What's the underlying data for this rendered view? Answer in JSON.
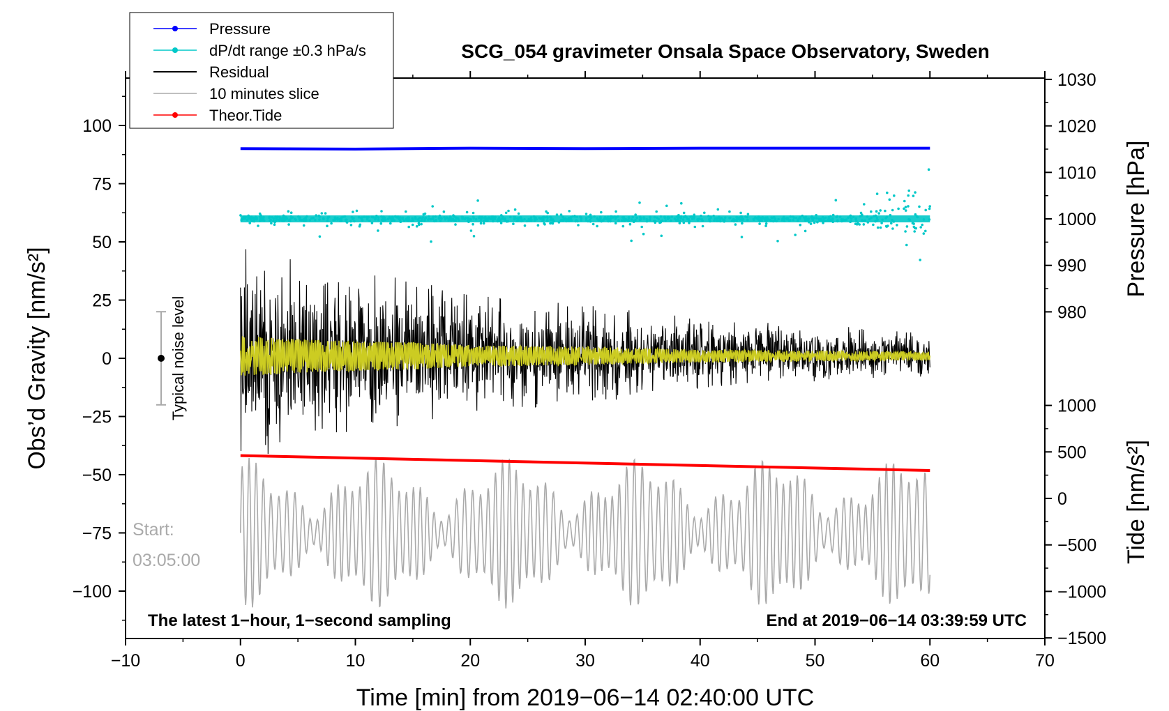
{
  "chart_data": {
    "type": "line",
    "title": "SCG_054 gravimeter Onsala Space Observatory, Sweden",
    "xlabel": "Time [min] from 2019−06−14 02:40:00 UTC",
    "ylabel_left": "Obs’d Gravity [nm/s²]",
    "ylabel_right_top": "Pressure [hPa]",
    "ylabel_right_bottom": "Tide [nm/s²]",
    "xlim": [
      -10,
      70
    ],
    "ylim_left": [
      -120,
      120
    ],
    "x_ticks": [
      "−10",
      "0",
      "10",
      "20",
      "30",
      "40",
      "50",
      "60",
      "70"
    ],
    "y_ticks_left": [
      "−100",
      "−75",
      "−50",
      "−25",
      "0",
      "25",
      "50",
      "75",
      "100"
    ],
    "y_ticks_pressure": [
      "980",
      "990",
      "1000",
      "1010",
      "1020",
      "1030"
    ],
    "y_ticks_tide": [
      "−1500",
      "−1000",
      "−500",
      "0",
      "500",
      "1000"
    ],
    "legend": [
      {
        "label": "Pressure",
        "color": "#0000ff"
      },
      {
        "label": "dP/dt range ±0.3 hPa/s",
        "color": "#00c8c8"
      },
      {
        "label": "Residual",
        "color": "#000000"
      },
      {
        "label": "10 minutes slice",
        "color": "#aaaaaa"
      },
      {
        "label": "Theor.Tide",
        "color": "#ff0000"
      }
    ],
    "series": [
      {
        "name": "Pressure",
        "color": "#0000ff",
        "axis": "pressure_hPa",
        "x": [
          0,
          10,
          20,
          30,
          40,
          50,
          60
        ],
        "values": [
          1015.1,
          1015.0,
          1015.2,
          1015.1,
          1015.2,
          1015.2,
          1015.2
        ]
      },
      {
        "name": "Theor.Tide",
        "color": "#ff0000",
        "axis": "tide_nm_s2",
        "x": [
          0,
          60
        ],
        "values": [
          460,
          300
        ]
      },
      {
        "name": "Residual",
        "color": "#000000",
        "axis": "gravity_nm_s2",
        "envelope_x": [
          0,
          5,
          10,
          15,
          20,
          30,
          40,
          50,
          60
        ],
        "envelope_amplitude": [
          48,
          40,
          35,
          32,
          25,
          22,
          15,
          12,
          10
        ]
      },
      {
        "name": "10 minutes slice",
        "color": "#aaaaaa",
        "axis": "gravity_nm_s2",
        "center": -75,
        "amplitude": 25
      }
    ],
    "annotations": {
      "noise_bar_label": "Typical noise level",
      "noise_bar_range": [
        -20,
        20
      ],
      "start_label": "Start:",
      "start_time": "03:05:00",
      "bottom_left": "The latest 1−hour, 1−second sampling",
      "bottom_right": "End at 2019−06−14 03:39:59 UTC"
    },
    "grid": false,
    "legend_position": "top-left"
  }
}
